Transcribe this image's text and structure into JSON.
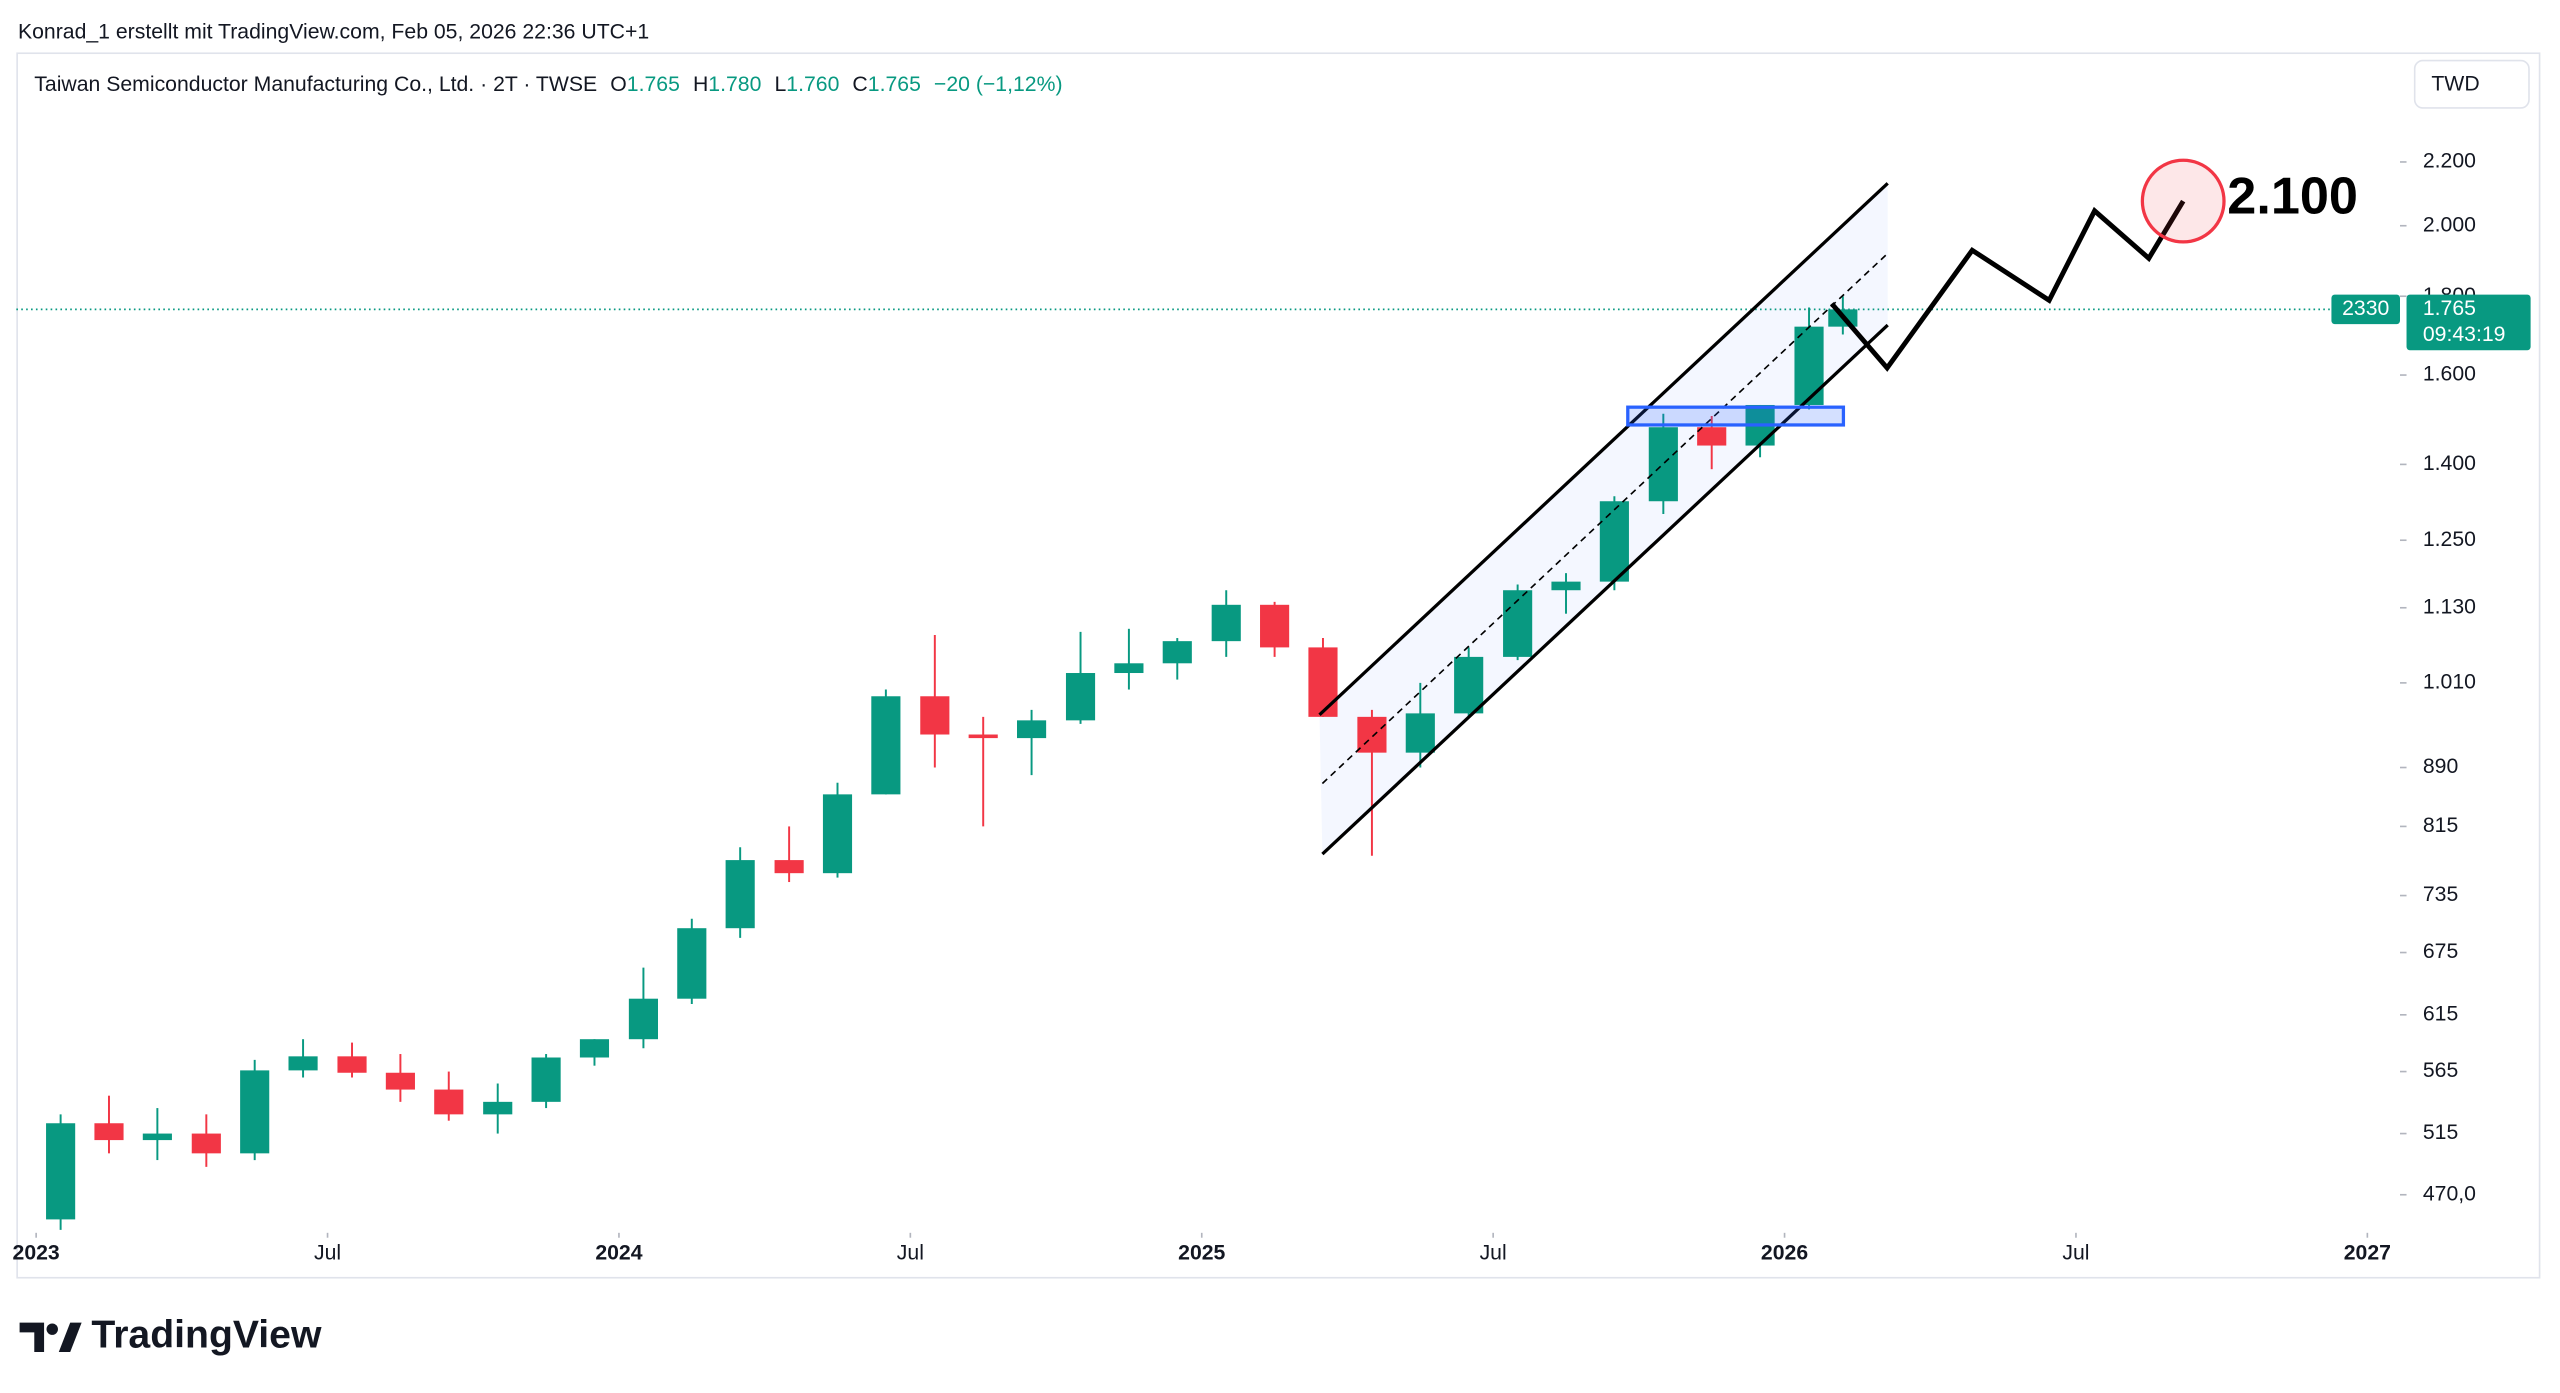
{
  "header": {
    "credit": "Konrad_1 erstellt mit TradingView.com, Feb 05, 2026 22:36 UTC+1",
    "currency": "TWD"
  },
  "footer": {
    "brand": "TradingView"
  },
  "chart_data": {
    "type": "candlestick",
    "title": "Taiwan Semiconductor Manufacturing Co., Ltd. · 2T · TWSE",
    "legend": [
      {
        "key": "O",
        "value": "1.765"
      },
      {
        "key": "H",
        "value": "1.780"
      },
      {
        "key": "L",
        "value": "1.760"
      },
      {
        "key": "C",
        "value": "1.765"
      }
    ],
    "change": "−20 (−1,12%)",
    "x": [
      2023.042,
      2023.125,
      2023.208,
      2023.292,
      2023.375,
      2023.458,
      2023.542,
      2023.625,
      2023.708,
      2023.792,
      2023.875,
      2023.958,
      2024.042,
      2024.125,
      2024.208,
      2024.292,
      2024.375,
      2024.458,
      2024.542,
      2024.625,
      2024.708,
      2024.792,
      2024.875,
      2024.958,
      2025.042,
      2025.125,
      2025.208,
      2025.292,
      2025.375,
      2025.458,
      2025.542,
      2025.625,
      2025.708,
      2025.792,
      2025.875,
      2025.958,
      2026.042,
      2026.1
    ],
    "open": [
      453,
      523,
      510,
      515,
      500,
      566,
      578,
      564,
      550,
      530,
      540,
      577,
      593,
      630,
      700,
      775,
      760,
      855,
      990,
      935,
      930,
      955,
      1025,
      1040,
      1075,
      1135,
      1065,
      960,
      910,
      965,
      1050,
      1160,
      1175,
      1325,
      1480,
      1440,
      1530,
      1720
    ],
    "high": [
      530,
      545,
      535,
      530,
      575,
      593,
      590,
      580,
      565,
      555,
      580,
      593,
      660,
      710,
      790,
      815,
      870,
      1000,
      1085,
      960,
      970,
      1090,
      1095,
      1080,
      1160,
      1140,
      1080,
      970,
      1010,
      1065,
      1170,
      1190,
      1335,
      1510,
      1505,
      1530,
      1770,
      1800
    ],
    "low": [
      446,
      500,
      495,
      490,
      495,
      560,
      560,
      540,
      525,
      515,
      535,
      570,
      585,
      625,
      690,
      750,
      755,
      855,
      890,
      815,
      880,
      950,
      1000,
      1015,
      1050,
      1050,
      960,
      780,
      890,
      960,
      1045,
      1120,
      1160,
      1300,
      1390,
      1415,
      1520,
      1700
    ],
    "close": [
      523,
      510,
      515,
      500,
      566,
      578,
      564,
      550,
      530,
      540,
      577,
      593,
      630,
      700,
      775,
      760,
      855,
      990,
      935,
      930,
      955,
      1025,
      1040,
      1075,
      1135,
      1065,
      960,
      910,
      965,
      1050,
      1160,
      1175,
      1325,
      1480,
      1440,
      1530,
      1720,
      1765
    ],
    "up_color": "#089981",
    "down_color": "#f23645",
    "log_scale": true,
    "xlim": [
      2022.966,
      2027.056
    ],
    "ylim": [
      444,
      2585
    ],
    "xticks": [
      2023,
      {
        "value": 2023.5,
        "label": "Jul"
      },
      2024,
      {
        "value": 2024.5,
        "label": "Jul"
      },
      2025,
      {
        "value": 2025.5,
        "label": "Jul"
      },
      2026,
      {
        "value": 2026.5,
        "label": "Jul"
      },
      2027
    ],
    "yticks": [
      {
        "value": 470,
        "label": "470,0"
      },
      515,
      565,
      615,
      675,
      735,
      815,
      890,
      {
        "value": 1010,
        "label": "1.010"
      },
      {
        "value": 1130,
        "label": "1.130"
      },
      {
        "value": 1250,
        "label": "1.250"
      },
      {
        "value": 1400,
        "label": "1.400"
      },
      {
        "value": 1600,
        "label": "1.600"
      },
      {
        "value": 1800,
        "label": "1.800"
      },
      {
        "value": 2000,
        "label": "2.000"
      },
      {
        "value": 2200,
        "label": "2.200"
      }
    ],
    "last_price": {
      "value": 1765,
      "label": "1.765",
      "symbol": "2330",
      "countdown": "09:43:19"
    },
    "channel": {
      "upper": {
        "x": [
          2025.202,
          2026.177
        ],
        "y": [
          963,
          2131
        ]
      },
      "middle": {
        "x": [
          2025.207,
          2026.177
        ],
        "y": [
          869,
          1919
        ]
      },
      "lower": {
        "x": [
          2025.207,
          2026.177
        ],
        "y": [
          782,
          1724
        ]
      }
    },
    "zone": {
      "x": [
        2025.731,
        2026.101
      ],
      "y": [
        1485,
        1525
      ]
    },
    "projection": {
      "x": [
        2026.081,
        2026.176,
        2026.322,
        2026.454,
        2026.532,
        2026.625,
        2026.684
      ],
      "y": [
        1780,
        1617,
        1928,
        1789,
        2045,
        1905,
        2075
      ]
    },
    "target": {
      "x": 2026.684,
      "y": 2075,
      "label": "2.100"
    }
  }
}
